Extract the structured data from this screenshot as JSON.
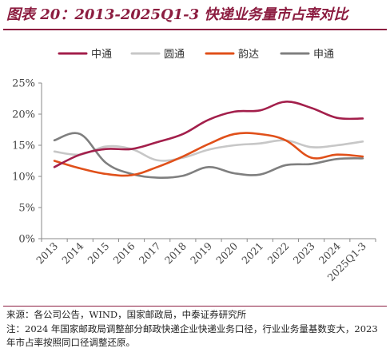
{
  "header": {
    "title": "图表 20：2013-2025Q1-3 快递业务量市占率对比"
  },
  "footer": {
    "source": "来源：各公司公告，WIND，国家邮政局，中泰证券研究所",
    "note": "注：2024 年国家邮政局调整部分邮政快递企业快递业务口径，行业业务量基数变大，2023 年市占率按照同口径调整还原。"
  },
  "chart_data": {
    "type": "line",
    "categories": [
      "2013",
      "2014",
      "2015",
      "2016",
      "2017",
      "2018",
      "2019",
      "2020",
      "2021",
      "2022",
      "2023",
      "2024",
      "2025Q1-3"
    ],
    "y_ticks": [
      "0%",
      "5%",
      "10%",
      "15%",
      "20%",
      "25%"
    ],
    "ylim": [
      0,
      25
    ],
    "y_unit": "%",
    "legend_position": "top",
    "grid": false,
    "series": [
      {
        "name": "中通",
        "color": "#a31f4b",
        "values": [
          11.5,
          13.5,
          14.4,
          14.4,
          15.5,
          16.8,
          19.1,
          20.4,
          20.6,
          22.0,
          21.0,
          19.4,
          19.3
        ]
      },
      {
        "name": "圆通",
        "color": "#c7c7c7",
        "values": [
          14.0,
          13.5,
          14.8,
          14.4,
          12.6,
          13.0,
          14.3,
          15.0,
          15.3,
          15.8,
          14.7,
          15.0,
          15.6
        ]
      },
      {
        "name": "韵达",
        "color": "#e0501a",
        "values": [
          12.5,
          11.3,
          10.4,
          10.2,
          11.5,
          13.2,
          15.2,
          16.8,
          16.8,
          15.8,
          13.0,
          13.5,
          13.2
        ]
      },
      {
        "name": "申通",
        "color": "#7f7f7f",
        "values": [
          15.8,
          16.8,
          12.2,
          10.4,
          9.8,
          10.1,
          11.5,
          10.5,
          10.3,
          11.8,
          12.0,
          12.8,
          12.9
        ]
      }
    ]
  }
}
